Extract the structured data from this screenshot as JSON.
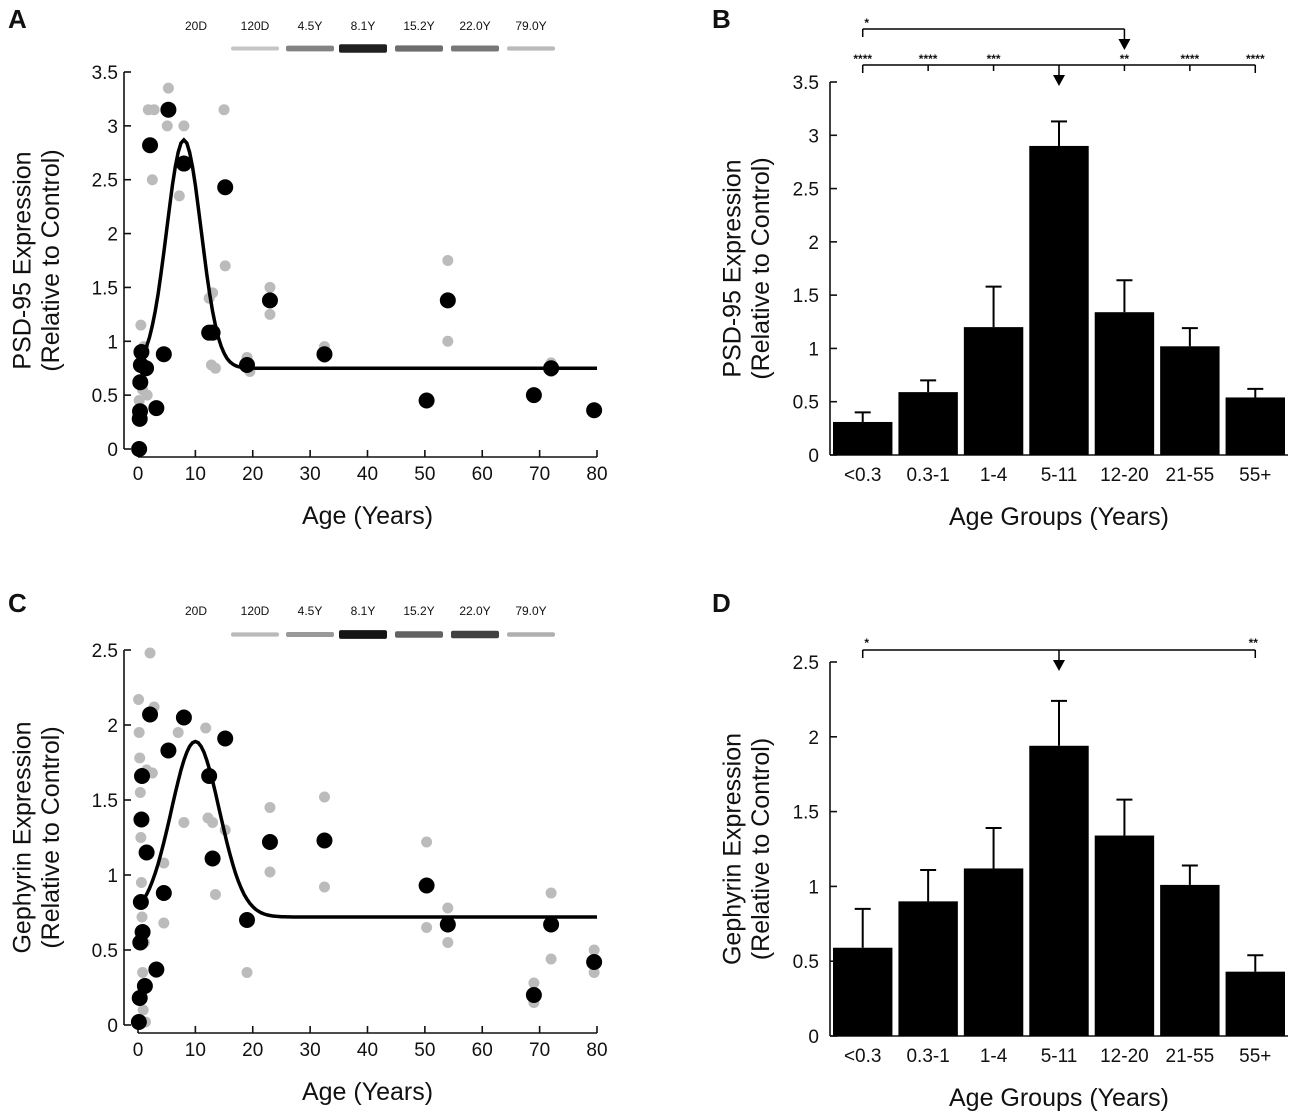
{
  "panels": [
    {
      "id": "A",
      "letter": "A"
    },
    {
      "id": "B",
      "letter": "B"
    },
    {
      "id": "C",
      "letter": "C"
    },
    {
      "id": "D",
      "letter": "D"
    }
  ],
  "blot_labels": [
    "20D",
    "120D",
    "4.5Y",
    "8.1Y",
    "15.2Y",
    "22.0Y",
    "79.0Y"
  ],
  "chart_data": [
    {
      "panel": "A",
      "type": "scatter",
      "xlabel": "Age (Years)",
      "ylabel_line1": "PSD-95 Expression",
      "ylabel_line2": "(Relative to Control)",
      "xlim": [
        0,
        80
      ],
      "ylim": [
        0,
        3.5
      ],
      "x_ticks": [
        0,
        10,
        20,
        30,
        40,
        50,
        60,
        70,
        80
      ],
      "x_tick_labels": [
        "0",
        "10",
        "20",
        "30",
        "40",
        "50",
        "60",
        "70",
        "80"
      ],
      "y_ticks": [
        0,
        0.5,
        1,
        1.5,
        2,
        2.5,
        3,
        3.5
      ],
      "y_tick_labels": [
        "0",
        "0.5",
        "1",
        "1.5",
        "2",
        "2.5",
        "3",
        "3.5"
      ],
      "series": [
        {
          "name": "replicates",
          "color": "#bbbbbb",
          "points": [
            [
              0.1,
              0.02
            ],
            [
              0.15,
              0.35
            ],
            [
              0.2,
              0.45
            ],
            [
              0.3,
              0.6
            ],
            [
              0.4,
              0.9
            ],
            [
              0.5,
              1.15
            ],
            [
              0.8,
              0.55
            ],
            [
              1,
              0.95
            ],
            [
              1.6,
              0.5
            ],
            [
              2.5,
              2.5
            ],
            [
              1.8,
              3.15
            ],
            [
              2.8,
              3.15
            ],
            [
              5.1,
              3.0
            ],
            [
              5.3,
              3.35
            ],
            [
              7.2,
              2.35
            ],
            [
              8,
              3.0
            ],
            [
              12.4,
              1.4
            ],
            [
              13,
              1.45
            ],
            [
              12.8,
              0.78
            ],
            [
              13.5,
              0.75
            ],
            [
              15,
              3.15
            ],
            [
              15.2,
              1.7
            ],
            [
              19,
              0.85
            ],
            [
              19.5,
              0.72
            ],
            [
              23,
              1.5
            ],
            [
              23,
              1.25
            ],
            [
              32.5,
              0.95
            ],
            [
              32.5,
              0.85
            ],
            [
              54,
              1.75
            ],
            [
              54,
              1.0
            ],
            [
              69,
              0.5
            ],
            [
              72,
              0.8
            ],
            [
              72,
              0.72
            ]
          ]
        },
        {
          "name": "means",
          "color": "#000000",
          "points": [
            [
              0.2,
              0.0
            ],
            [
              0.3,
              0.28
            ],
            [
              0.35,
              0.35
            ],
            [
              0.4,
              0.62
            ],
            [
              0.5,
              0.78
            ],
            [
              0.6,
              0.9
            ],
            [
              1.4,
              0.75
            ],
            [
              2.1,
              2.82
            ],
            [
              3.2,
              0.38
            ],
            [
              4.5,
              0.88
            ],
            [
              5.3,
              3.15
            ],
            [
              8,
              2.65
            ],
            [
              12.4,
              1.08
            ],
            [
              13,
              1.08
            ],
            [
              15.2,
              2.43
            ],
            [
              19,
              0.78
            ],
            [
              23,
              1.38
            ],
            [
              32.5,
              0.88
            ],
            [
              50.3,
              0.45
            ],
            [
              54,
              1.38
            ],
            [
              69,
              0.5
            ],
            [
              72,
              0.75
            ],
            [
              79.5,
              0.36
            ]
          ]
        }
      ],
      "fit": {
        "type": "gaussian",
        "baseline": 0.75,
        "amplitude": 2.12,
        "center": 8.0,
        "sigma": 3.0
      }
    },
    {
      "panel": "B",
      "type": "bar",
      "xlabel": "Age Groups (Years)",
      "ylabel_line1": "PSD-95 Expression",
      "ylabel_line2": "(Relative to Control)",
      "ylim": [
        0,
        3.5
      ],
      "y_ticks": [
        0,
        0.5,
        1,
        1.5,
        2,
        2.5,
        3,
        3.5
      ],
      "y_tick_labels": [
        "0",
        "0.5",
        "1",
        "1.5",
        "2",
        "2.5",
        "3",
        "3.5"
      ],
      "categories": [
        "<0.3",
        "0.3-1",
        "1-4",
        "5-11",
        "12-20",
        "21-55",
        "55+"
      ],
      "values": [
        0.31,
        0.59,
        1.2,
        2.9,
        1.34,
        1.02,
        0.54
      ],
      "errors": [
        0.09,
        0.11,
        0.38,
        0.23,
        0.3,
        0.17,
        0.08
      ],
      "significance": {
        "upper_bracket": {
          "from": 0,
          "to": 4,
          "left_label": "*"
        },
        "lower_bracket": {
          "from": 0,
          "to": 6,
          "arrow_at": 3
        },
        "labels": [
          {
            "category": 0,
            "text": "****"
          },
          {
            "category": 1,
            "text": "****"
          },
          {
            "category": 2,
            "text": "***"
          },
          {
            "category": 4,
            "text": "**"
          },
          {
            "category": 5,
            "text": "****"
          },
          {
            "category": 6,
            "text": "****"
          }
        ]
      }
    },
    {
      "panel": "C",
      "type": "scatter",
      "xlabel": "Age (Years)",
      "ylabel_line1": "Gephyrin Expression",
      "ylabel_line2": "(Relative to Control)",
      "xlim": [
        0,
        80
      ],
      "ylim": [
        0,
        2.5
      ],
      "x_ticks": [
        0,
        10,
        20,
        30,
        40,
        50,
        60,
        70,
        80
      ],
      "x_tick_labels": [
        "0",
        "10",
        "20",
        "30",
        "40",
        "50",
        "60",
        "70",
        "80"
      ],
      "y_ticks": [
        0,
        0.5,
        1,
        1.5,
        2,
        2.5
      ],
      "y_tick_labels": [
        "0",
        "0.5",
        "1",
        "1.5",
        "2",
        "2.5"
      ],
      "series": [
        {
          "name": "replicates",
          "color": "#bbbbbb",
          "points": [
            [
              0.1,
              2.17
            ],
            [
              0.2,
              1.95
            ],
            [
              0.3,
              1.78
            ],
            [
              0.4,
              1.55
            ],
            [
              0.5,
              1.25
            ],
            [
              0.6,
              0.95
            ],
            [
              0.7,
              0.72
            ],
            [
              0.8,
              0.35
            ],
            [
              0.9,
              0.1
            ],
            [
              1.1,
              0.55
            ],
            [
              1.5,
              1.7
            ],
            [
              1.3,
              0.02
            ],
            [
              2.1,
              2.48
            ],
            [
              2.5,
              1.68
            ],
            [
              2.8,
              2.12
            ],
            [
              3.2,
              0.35
            ],
            [
              4.5,
              1.08
            ],
            [
              4.5,
              0.68
            ],
            [
              7,
              1.95
            ],
            [
              8,
              1.35
            ],
            [
              11.8,
              1.98
            ],
            [
              12.2,
              1.38
            ],
            [
              13,
              1.35
            ],
            [
              13.5,
              0.87
            ],
            [
              15.2,
              1.3
            ],
            [
              19,
              0.35
            ],
            [
              23,
              1.45
            ],
            [
              23,
              1.02
            ],
            [
              32.5,
              1.52
            ],
            [
              32.5,
              0.92
            ],
            [
              50.3,
              1.22
            ],
            [
              50.3,
              0.65
            ],
            [
              54,
              0.78
            ],
            [
              54,
              0.55
            ],
            [
              69,
              0.28
            ],
            [
              69,
              0.15
            ],
            [
              72,
              0.88
            ],
            [
              72,
              0.44
            ],
            [
              79.5,
              0.5
            ],
            [
              79.5,
              0.35
            ]
          ]
        },
        {
          "name": "means",
          "color": "#000000",
          "points": [
            [
              0.15,
              0.02
            ],
            [
              0.3,
              0.18
            ],
            [
              0.4,
              0.55
            ],
            [
              0.5,
              0.82
            ],
            [
              0.6,
              1.37
            ],
            [
              0.7,
              1.66
            ],
            [
              0.8,
              0.62
            ],
            [
              1.2,
              0.26
            ],
            [
              1.5,
              1.15
            ],
            [
              2.1,
              2.07
            ],
            [
              3.2,
              0.37
            ],
            [
              4.5,
              0.88
            ],
            [
              5.3,
              1.83
            ],
            [
              8,
              2.05
            ],
            [
              12.4,
              1.66
            ],
            [
              13,
              1.11
            ],
            [
              15.2,
              1.91
            ],
            [
              19,
              0.7
            ],
            [
              23,
              1.22
            ],
            [
              32.5,
              1.23
            ],
            [
              50.3,
              0.93
            ],
            [
              54,
              0.67
            ],
            [
              69,
              0.2
            ],
            [
              72,
              0.67
            ],
            [
              79.5,
              0.42
            ]
          ]
        }
      ],
      "fit": {
        "type": "gaussian",
        "baseline": 0.72,
        "amplitude": 1.17,
        "center": 10.0,
        "sigma": 4.2
      }
    },
    {
      "panel": "D",
      "type": "bar",
      "xlabel": "Age Groups (Years)",
      "ylabel_line1": "Gephyrin Expression",
      "ylabel_line2": "(Relative to Control)",
      "ylim": [
        0,
        2.5
      ],
      "y_ticks": [
        0,
        0.5,
        1,
        1.5,
        2,
        2.5
      ],
      "y_tick_labels": [
        "0",
        "0.5",
        "1",
        "1.5",
        "2",
        "2.5"
      ],
      "categories": [
        "<0.3",
        "0.3-1",
        "1-4",
        "5-11",
        "12-20",
        "21-55",
        "55+"
      ],
      "values": [
        0.59,
        0.9,
        1.12,
        1.94,
        1.34,
        1.01,
        0.43
      ],
      "errors": [
        0.26,
        0.21,
        0.27,
        0.3,
        0.24,
        0.13,
        0.11
      ],
      "significance": {
        "lower_bracket": {
          "from": 0,
          "to": 6,
          "arrow_at": 3,
          "left_label": "*",
          "right_label": "**"
        }
      }
    }
  ]
}
